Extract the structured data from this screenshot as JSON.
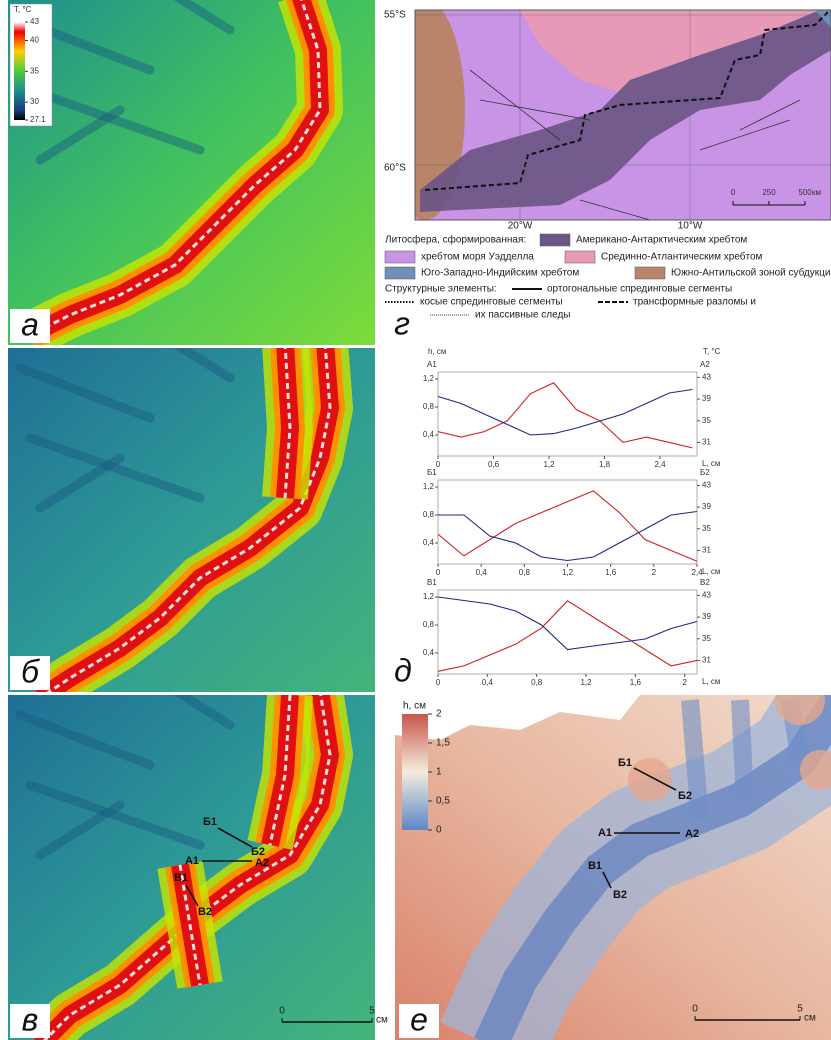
{
  "panel_a": {
    "label": "а",
    "colorbar": {
      "title": "T, °C",
      "ticks": [
        43,
        40,
        35,
        30,
        27.1
      ]
    }
  },
  "panel_b": {
    "label": "б"
  },
  "panel_v": {
    "label": "в",
    "points": [
      "Б1",
      "Б2",
      "А1",
      "А2",
      "В1",
      "В2"
    ],
    "scale": {
      "ticks": [
        0,
        5
      ],
      "unit": "см"
    }
  },
  "panel_g": {
    "label": "г",
    "lat_labels": [
      "55°S",
      "60°S"
    ],
    "lon_labels": [
      "20°W",
      "10°W"
    ],
    "scale": {
      "ticks": [
        0,
        250,
        500
      ],
      "unit": "км"
    },
    "legend": {
      "lithosphere_title": "Литосфера, сформированная:",
      "lithosphere": [
        {
          "text": "Американо-Антарктическим хребтом",
          "color": "#6b5687"
        },
        {
          "text": "хребтом моря Уэдделла",
          "color": "#c994e6"
        },
        {
          "text": "Срединно-Атлантическим хребтом",
          "color": "#e79ab8"
        },
        {
          "text": "Юго-Западно-Индийским хребтом",
          "color": "#6f8fb8"
        },
        {
          "text": "Южно-Антильской зоной субдукции",
          "color": "#b9846a"
        }
      ],
      "structures_title": "Структурные элементы:",
      "structures": [
        {
          "text": "ортогональные спрединговые сегменты",
          "style": "solid"
        },
        {
          "text": "косые спрединговые сегменты",
          "style": "dotted"
        },
        {
          "text": "трансформные разломы и",
          "style": "dashed"
        },
        {
          "text": "их пассивные следы",
          "style": "thin-dotted"
        }
      ]
    }
  },
  "panel_d": {
    "label": "д",
    "h_title": "h, см",
    "t_title": "T, °C",
    "hlim": [
      0.1,
      1.3
    ],
    "hticks": [
      {
        "value": 0.4,
        "label": "0,4"
      },
      {
        "value": 0.8,
        "label": "0,8"
      },
      {
        "value": 1.2,
        "label": "1,2"
      }
    ],
    "tlim": [
      28.5,
      44
    ],
    "tticks": [
      31,
      35,
      39,
      43
    ],
    "profiles": [
      {
        "start": "А1",
        "end": "А2",
        "x_unit": "L, см",
        "xlim": [
          0,
          2.8
        ],
        "xticks": [
          0,
          {
            "value": 0.6,
            "label": "0,6"
          },
          {
            "value": 1.2,
            "label": "1,2"
          },
          {
            "value": 1.8,
            "label": "1,8"
          },
          {
            "value": 2.4,
            "label": "2,4"
          }
        ],
        "x": [
          0,
          0.25,
          0.5,
          0.75,
          1.0,
          1.25,
          1.5,
          1.75,
          2.0,
          2.25,
          2.5,
          2.75
        ],
        "h": [
          0.95,
          0.85,
          0.7,
          0.55,
          0.4,
          0.42,
          0.5,
          0.6,
          0.7,
          0.85,
          1.0,
          1.05
        ],
        "t": [
          33,
          32,
          33,
          35,
          40,
          42,
          37,
          35,
          31,
          32,
          31,
          30
        ]
      },
      {
        "start": "Б1",
        "end": "Б2",
        "x_unit": "L, см",
        "xlim": [
          0,
          2.4
        ],
        "xticks": [
          0,
          {
            "value": 0.4,
            "label": "0,4"
          },
          {
            "value": 0.8,
            "label": "0,8"
          },
          {
            "value": 1.2,
            "label": "1,2"
          },
          {
            "value": 1.6,
            "label": "1,6"
          },
          2,
          {
            "value": 2.4,
            "label": "2,4"
          }
        ],
        "x": [
          0,
          0.24,
          0.48,
          0.72,
          0.96,
          1.2,
          1.44,
          1.68,
          1.92,
          2.16,
          2.4
        ],
        "h": [
          0.8,
          0.8,
          0.5,
          0.4,
          0.2,
          0.15,
          0.2,
          0.4,
          0.6,
          0.8,
          0.85
        ],
        "t": [
          34,
          30,
          33,
          36,
          38,
          40,
          42,
          38,
          33,
          31,
          29
        ]
      },
      {
        "start": "В1",
        "end": "В2",
        "x_unit": "L, см",
        "xlim": [
          0,
          2.1
        ],
        "xticks": [
          0,
          {
            "value": 0.4,
            "label": "0,4"
          },
          {
            "value": 0.8,
            "label": "0,8"
          },
          {
            "value": 1.2,
            "label": "1,2"
          },
          {
            "value": 1.6,
            "label": "1,6"
          },
          2
        ],
        "x": [
          0,
          0.21,
          0.42,
          0.63,
          0.84,
          1.05,
          1.26,
          1.47,
          1.68,
          1.89,
          2.1
        ],
        "h": [
          1.2,
          1.15,
          1.1,
          1.0,
          0.8,
          0.45,
          0.5,
          0.55,
          0.6,
          0.75,
          0.85
        ],
        "t": [
          29,
          30,
          32,
          34,
          37,
          42,
          39,
          36,
          33,
          30,
          31
        ]
      }
    ]
  },
  "panel_e": {
    "label": "е",
    "colorbar": {
      "title": "h, см",
      "ticks": [
        2,
        {
          "value": 1.5,
          "label": "1,5"
        },
        1,
        {
          "value": 0.5,
          "label": "0,5"
        },
        0
      ]
    },
    "points": [
      "Б1",
      "Б2",
      "А1",
      "А2",
      "В1",
      "В2"
    ],
    "scale": {
      "ticks": [
        0,
        5
      ],
      "unit": "см"
    }
  }
}
